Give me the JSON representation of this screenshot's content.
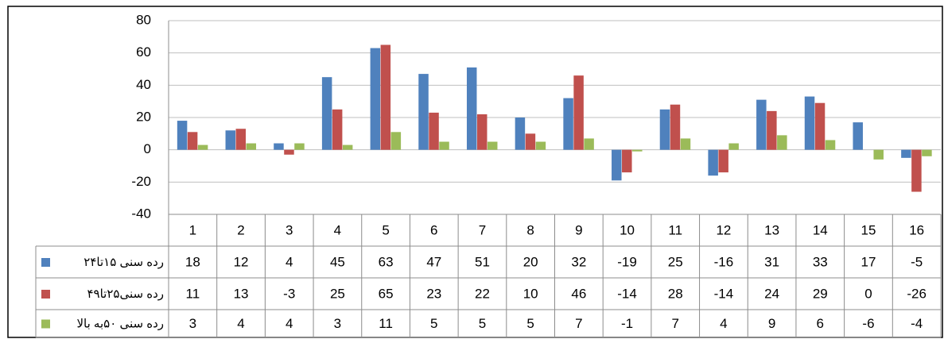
{
  "chart_data": {
    "type": "bar",
    "categories": [
      "1",
      "2",
      "3",
      "4",
      "5",
      "6",
      "7",
      "8",
      "9",
      "10",
      "11",
      "12",
      "13",
      "14",
      "15",
      "16"
    ],
    "series": [
      {
        "name": "رده سنی ۱۵تا۲۴",
        "color": "#4f81bd",
        "values": [
          18,
          12,
          4,
          45,
          63,
          47,
          51,
          20,
          32,
          -19,
          25,
          -16,
          31,
          33,
          17,
          -5
        ]
      },
      {
        "name": "رده سنی۲۵تا۴۹",
        "color": "#c0504d",
        "values": [
          11,
          13,
          -3,
          25,
          65,
          23,
          22,
          10,
          46,
          -14,
          28,
          -14,
          24,
          29,
          0,
          -26
        ]
      },
      {
        "name": "رده سنی ۵۰به بالا",
        "color": "#9bbb59",
        "values": [
          3,
          4,
          4,
          3,
          11,
          5,
          5,
          5,
          7,
          -1,
          7,
          4,
          9,
          6,
          -6,
          -4
        ]
      }
    ],
    "ylim": [
      -40,
      80
    ],
    "yticks": [
      -40,
      -20,
      0,
      20,
      40,
      60,
      80
    ],
    "grid": true,
    "data_table": true
  }
}
